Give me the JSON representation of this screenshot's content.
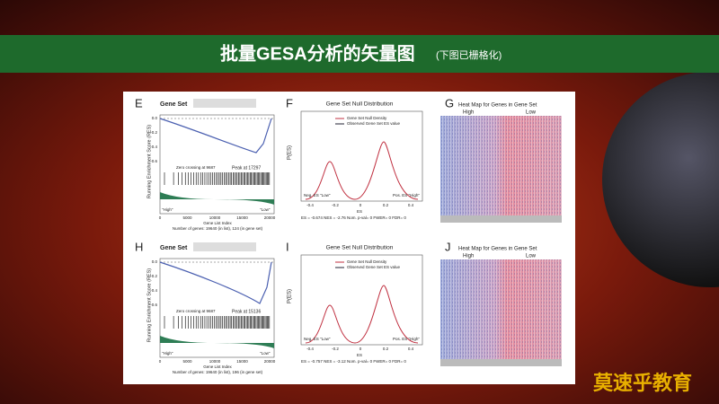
{
  "header": {
    "title": "批量GESA分析的矢量图",
    "note": "(下图已栅格化)"
  },
  "rows": [
    {
      "gsea": {
        "label": "E",
        "title": "Gene Set",
        "y_label": "Running Enrichment Score (RES)",
        "yticks": [
          "0.0",
          "-0.2",
          "-0.4",
          "-0.6"
        ],
        "zero_crossing": "Zero crossing at 9687",
        "peak": "Peak at 17297",
        "high": "\"High\"",
        "low": "\"Low\"",
        "xticks": [
          "0",
          "5000",
          "10000",
          "15000",
          "20000"
        ],
        "x_label": "Gene List Index",
        "footnote": "Number of genes: 19640 (in list), 124 (in gene set)"
      },
      "null": {
        "label": "F",
        "title": "Gene Set Null Distribution",
        "legend": [
          "Gene Set Null Density",
          "Observed Gene Set ES value"
        ],
        "y_label": "P(ES)",
        "xticks": [
          "-0.4",
          "-0.2",
          "0",
          "0.2",
          "0.4"
        ],
        "neg": "Neg. ES \"Low\"",
        "pos": "Pos. ES \"High\"",
        "x_label": "ES",
        "footer": "ES = -0.674 NES = -2.76 Nom. p-val= 0 FWER= 0 FDR= 0"
      },
      "heatmap": {
        "label": "G",
        "title": "Heat Map for Genes in Gene Set",
        "high": "High",
        "low": "Low"
      }
    },
    {
      "gsea": {
        "label": "H",
        "title": "Gene Set",
        "y_label": "Running Enrichment Score (RES)",
        "yticks": [
          "0.0",
          "-0.2",
          "-0.4",
          "-0.6"
        ],
        "zero_crossing": "Zero crossing at 9687",
        "peak": "Peak at 15136",
        "high": "\"High\"",
        "low": "\"Low\"",
        "xticks": [
          "0",
          "5000",
          "10000",
          "15000",
          "20000"
        ],
        "x_label": "Gene List Index",
        "footnote": "Number of genes: 19640 (in list), 196 (in gene set)"
      },
      "null": {
        "label": "I",
        "title": "Gene Set Null Distribution",
        "legend": [
          "Gene Set Null Density",
          "Observed Gene Set ES value"
        ],
        "y_label": "P(ES)",
        "xticks": [
          "-0.4",
          "-0.2",
          "0",
          "0.2",
          "0.4"
        ],
        "neg": "Neg. ES \"Low\"",
        "pos": "Pos. ES \"High\"",
        "x_label": "ES",
        "footer": "ES = -0.757 NES = -3.12 Nom. p-val= 0 FWER= 0 FDR= 0"
      },
      "heatmap": {
        "label": "J",
        "title": "Heat Map for Genes in Gene Set",
        "high": "High",
        "low": "Low"
      }
    }
  ],
  "watermark": "莫速乎教育"
}
